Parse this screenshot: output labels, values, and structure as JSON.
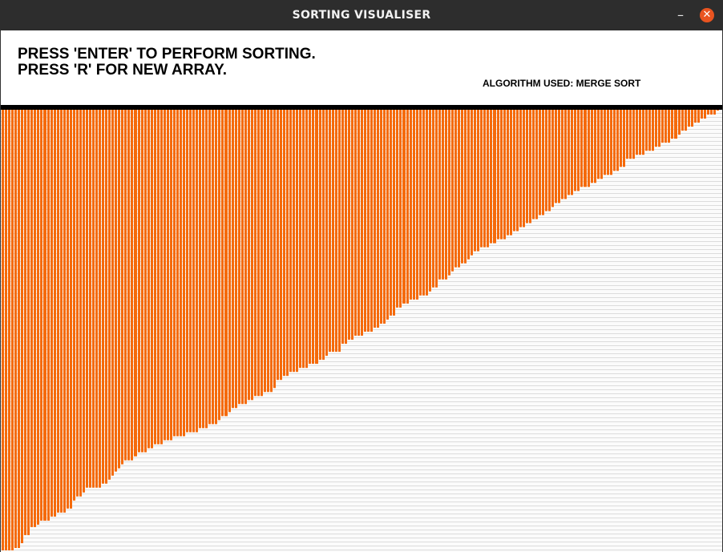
{
  "window": {
    "title": "SORTING VISUALISER",
    "minimize_glyph": "–",
    "close_glyph": "✕"
  },
  "header": {
    "instruction_1": "PRESS 'ENTER' TO PERFORM SORTING.",
    "instruction_2": "PRESS 'R' FOR NEW ARRAY.",
    "algorithm_label": "ALGORITHM USED: MERGE SORT"
  },
  "colors": {
    "bar": "#f56a0a",
    "titlebar": "#2d2d2d",
    "close_button": "#e95420"
  },
  "chart_data": {
    "type": "bar",
    "title": "",
    "xlabel": "",
    "ylabel": "",
    "sorted_order": "ascending",
    "ylim": [
      0,
      550
    ],
    "values": [
      548,
      548,
      548,
      548,
      545,
      545,
      539,
      529,
      529,
      519,
      519,
      516,
      511,
      511,
      511,
      506,
      506,
      501,
      501,
      501,
      496,
      496,
      486,
      481,
      481,
      476,
      470,
      470,
      470,
      470,
      470,
      465,
      465,
      460,
      455,
      450,
      446,
      441,
      436,
      436,
      436,
      431,
      426,
      426,
      426,
      421,
      421,
      416,
      416,
      416,
      411,
      411,
      411,
      406,
      406,
      406,
      406,
      401,
      401,
      401,
      401,
      396,
      396,
      396,
      391,
      391,
      391,
      386,
      381,
      381,
      376,
      371,
      371,
      366,
      366,
      366,
      361,
      361,
      356,
      356,
      356,
      351,
      351,
      351,
      346,
      336,
      336,
      331,
      331,
      326,
      326,
      326,
      321,
      321,
      321,
      316,
      316,
      316,
      311,
      311,
      306,
      301,
      301,
      301,
      301,
      291,
      291,
      286,
      286,
      281,
      281,
      281,
      276,
      276,
      276,
      271,
      271,
      266,
      266,
      261,
      256,
      256,
      246,
      246,
      241,
      241,
      236,
      236,
      236,
      231,
      231,
      231,
      226,
      221,
      221,
      211,
      211,
      211,
      206,
      201,
      196,
      196,
      191,
      191,
      186,
      181,
      176,
      176,
      171,
      171,
      171,
      166,
      166,
      161,
      161,
      161,
      156,
      156,
      151,
      151,
      146,
      146,
      141,
      141,
      136,
      136,
      131,
      131,
      126,
      126,
      121,
      116,
      116,
      111,
      111,
      106,
      106,
      101,
      101,
      96,
      96,
      96,
      91,
      91,
      86,
      86,
      81,
      81,
      81,
      76,
      76,
      71,
      71,
      61,
      61,
      61,
      56,
      56,
      56,
      51,
      51,
      51,
      46,
      46,
      41,
      41,
      41,
      36,
      36,
      31,
      26,
      26,
      21,
      21,
      16,
      16,
      11,
      11,
      6,
      6,
      6,
      1
    ]
  }
}
